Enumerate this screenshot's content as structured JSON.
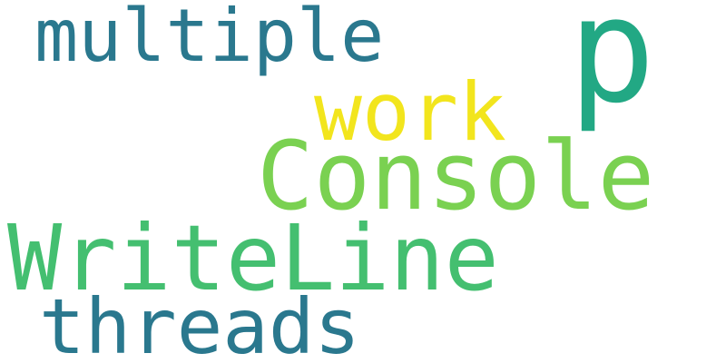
{
  "words": [
    {
      "text": "multiple",
      "color": "#2a788e"
    },
    {
      "text": "p",
      "color": "#22a884"
    },
    {
      "text": "work",
      "color": "#f2e51d"
    },
    {
      "text": "Console",
      "color": "#7ad151"
    },
    {
      "text": "WriteLine",
      "color": "#44bf70"
    },
    {
      "text": "threads",
      "color": "#2a788e"
    }
  ],
  "background": "#ffffff"
}
